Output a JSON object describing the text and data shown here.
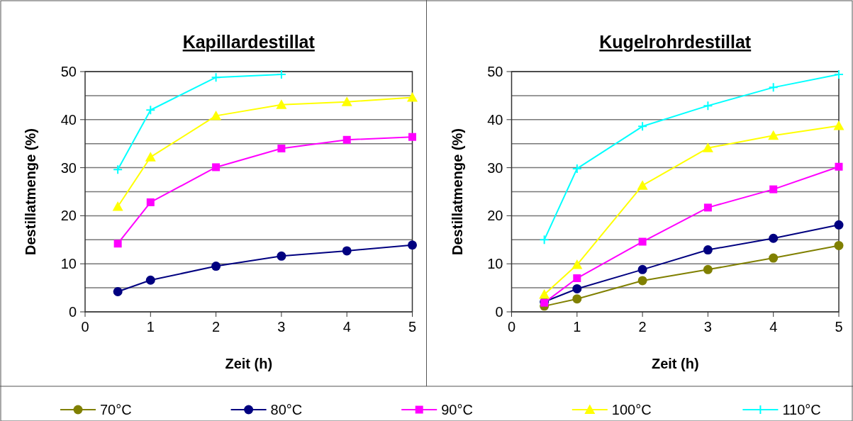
{
  "chart_data": [
    {
      "type": "line",
      "title": "Kapillardestillat",
      "xlabel": "Zeit (h)",
      "ylabel": "Destillatmenge (%)",
      "x": [
        0.5,
        1,
        2,
        3,
        4,
        5
      ],
      "xlim": [
        0,
        5
      ],
      "xticks": [
        0,
        1,
        2,
        3,
        4,
        5
      ],
      "ylim": [
        0,
        50
      ],
      "yticks": [
        0,
        {
          "value": 5,
          "label": null
        },
        10,
        {
          "value": 15,
          "label": null
        },
        20,
        {
          "value": 25,
          "label": null
        },
        30,
        {
          "value": 35,
          "label": null
        },
        40,
        {
          "value": 45,
          "label": null
        },
        50
      ],
      "grid": "y",
      "series": [
        {
          "color": "#000080",
          "marker": "circle",
          "values": [
            4.2,
            6.6,
            9.5,
            11.6,
            12.7,
            13.9
          ]
        },
        {
          "color": "#ff00ff",
          "marker": "square",
          "values": [
            14.2,
            22.8,
            30.1,
            34.0,
            35.8,
            36.4
          ]
        },
        {
          "color": "#ffff00",
          "marker": "triangle",
          "values": [
            21.9,
            32.2,
            40.8,
            43.1,
            43.7,
            44.6
          ]
        },
        {
          "color": "#00ffff",
          "marker": "cross",
          "values": [
            29.6,
            42.0,
            48.8,
            49.4,
            null,
            null
          ]
        }
      ]
    },
    {
      "type": "line",
      "title": "Kugelrohrdestillat",
      "xlabel": "Zeit (h)",
      "ylabel": "Destillatmenge (%)",
      "x": [
        0.5,
        1,
        2,
        3,
        4,
        5
      ],
      "xlim": [
        0,
        5
      ],
      "xticks": [
        0,
        1,
        2,
        3,
        4,
        5
      ],
      "ylim": [
        0,
        50
      ],
      "yticks": [
        0,
        {
          "value": 5,
          "label": null
        },
        10,
        {
          "value": 15,
          "label": null
        },
        20,
        {
          "value": 25,
          "label": null
        },
        30,
        {
          "value": 35,
          "label": null
        },
        40,
        {
          "value": 45,
          "label": null
        },
        50
      ],
      "grid": "y",
      "legend": "bottom",
      "series": [
        {
          "name": "70°C",
          "color": "#808000",
          "marker": "circle",
          "values": [
            1.2,
            2.7,
            6.5,
            8.8,
            11.2,
            13.8
          ]
        },
        {
          "name": "80°C",
          "color": "#000080",
          "marker": "circle",
          "values": [
            2.1,
            4.8,
            8.8,
            12.9,
            15.3,
            18.1
          ]
        },
        {
          "name": "90°C",
          "color": "#ff00ff",
          "marker": "square",
          "values": [
            1.9,
            7.0,
            14.6,
            21.7,
            25.5,
            30.2
          ]
        },
        {
          "name": "100°C",
          "color": "#ffff00",
          "marker": "triangle",
          "values": [
            3.6,
            9.8,
            26.3,
            34.1,
            36.7,
            38.7
          ]
        },
        {
          "name": "110°C",
          "color": "#00ffff",
          "marker": "cross",
          "values": [
            15.0,
            29.8,
            38.6,
            42.9,
            46.7,
            49.4
          ]
        }
      ]
    }
  ]
}
